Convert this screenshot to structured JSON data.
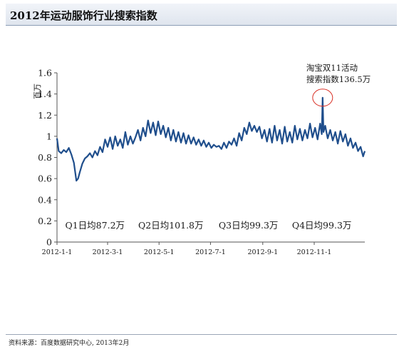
{
  "header": {
    "title": "2012年运动服饰行业搜索指数"
  },
  "footer": {
    "source": "资料来源：百度数据研究中心, 2013年2月"
  },
  "chart_data": {
    "type": "line",
    "title": "2012年运动服饰行业搜索指数",
    "ylabel": "百万",
    "xlabel": "",
    "ylim": [
      0,
      1.6
    ],
    "yticks": [
      {
        "v": 0,
        "label": "0"
      },
      {
        "v": 0.2,
        "label": "0.2"
      },
      {
        "v": 0.4,
        "label": "0.4"
      },
      {
        "v": 0.6,
        "label": "0.6"
      },
      {
        "v": 0.8,
        "label": "0.8"
      },
      {
        "v": 1.0,
        "label": "1"
      },
      {
        "v": 1.2,
        "label": "1.2"
      },
      {
        "v": 1.4,
        "label": "1.4"
      },
      {
        "v": 1.6,
        "label": "1.6"
      }
    ],
    "xticks": [
      {
        "date": "2012-01-01",
        "label": "2012-1-1"
      },
      {
        "date": "2012-03-01",
        "label": "2012-3-1"
      },
      {
        "date": "2012-05-01",
        "label": "2012-5-1"
      },
      {
        "date": "2012-07-01",
        "label": "2012-7-1"
      },
      {
        "date": "2012-09-01",
        "label": "2012-9-1"
      },
      {
        "date": "2012-11-01",
        "label": "2012-11-1"
      }
    ],
    "xrange": [
      "2012-01-01",
      "2012-12-31"
    ],
    "series_color": "#1f4e8c",
    "highlight_color": "#d93025",
    "series": [
      {
        "x": [
          "2012-01-01",
          "2012-01-03",
          "2012-01-06",
          "2012-01-09",
          "2012-01-12",
          "2012-01-15",
          "2012-01-18",
          "2012-01-21",
          "2012-01-24",
          "2012-01-26",
          "2012-01-28",
          "2012-01-31",
          "2012-02-03",
          "2012-02-06",
          "2012-02-09",
          "2012-02-12",
          "2012-02-15",
          "2012-02-18",
          "2012-02-21",
          "2012-02-24",
          "2012-02-27",
          "2012-03-01",
          "2012-03-04",
          "2012-03-07",
          "2012-03-10",
          "2012-03-13",
          "2012-03-16",
          "2012-03-19",
          "2012-03-22",
          "2012-03-25",
          "2012-03-28",
          "2012-03-31",
          "2012-04-03",
          "2012-04-06",
          "2012-04-09",
          "2012-04-12",
          "2012-04-15",
          "2012-04-18",
          "2012-04-21",
          "2012-04-24",
          "2012-04-27",
          "2012-04-30",
          "2012-05-03",
          "2012-05-06",
          "2012-05-09",
          "2012-05-12",
          "2012-05-15",
          "2012-05-18",
          "2012-05-21",
          "2012-05-24",
          "2012-05-27",
          "2012-05-30",
          "2012-06-02",
          "2012-06-05",
          "2012-06-08",
          "2012-06-11",
          "2012-06-14",
          "2012-06-17",
          "2012-06-20",
          "2012-06-23",
          "2012-06-26",
          "2012-06-29",
          "2012-07-02",
          "2012-07-05",
          "2012-07-08",
          "2012-07-11",
          "2012-07-14",
          "2012-07-17",
          "2012-07-20",
          "2012-07-23",
          "2012-07-26",
          "2012-07-29",
          "2012-08-01",
          "2012-08-04",
          "2012-08-07",
          "2012-08-10",
          "2012-08-13",
          "2012-08-16",
          "2012-08-19",
          "2012-08-22",
          "2012-08-25",
          "2012-08-28",
          "2012-08-31",
          "2012-09-03",
          "2012-09-06",
          "2012-09-09",
          "2012-09-12",
          "2012-09-15",
          "2012-09-18",
          "2012-09-21",
          "2012-09-24",
          "2012-09-27",
          "2012-09-30",
          "2012-10-03",
          "2012-10-06",
          "2012-10-09",
          "2012-10-12",
          "2012-10-15",
          "2012-10-18",
          "2012-10-21",
          "2012-10-24",
          "2012-10-27",
          "2012-10-30",
          "2012-11-02",
          "2012-11-05",
          "2012-11-08",
          "2012-11-10",
          "2012-11-11",
          "2012-11-12",
          "2012-11-14",
          "2012-11-17",
          "2012-11-20",
          "2012-11-23",
          "2012-11-26",
          "2012-11-29",
          "2012-12-02",
          "2012-12-05",
          "2012-12-08",
          "2012-12-11",
          "2012-12-14",
          "2012-12-17",
          "2012-12-20",
          "2012-12-23",
          "2012-12-26",
          "2012-12-29",
          "2012-12-31"
        ],
        "y": [
          0.98,
          0.86,
          0.84,
          0.87,
          0.85,
          0.89,
          0.83,
          0.75,
          0.58,
          0.6,
          0.66,
          0.74,
          0.79,
          0.81,
          0.84,
          0.8,
          0.86,
          0.82,
          0.9,
          0.85,
          0.97,
          0.9,
          0.99,
          0.88,
          1.0,
          0.91,
          0.97,
          0.89,
          1.04,
          0.92,
          1.0,
          0.93,
          0.99,
          1.06,
          0.96,
          1.08,
          1.0,
          1.15,
          1.03,
          1.13,
          1.01,
          1.14,
          1.02,
          1.1,
          0.99,
          1.08,
          0.96,
          1.06,
          0.95,
          1.04,
          0.94,
          1.03,
          0.93,
          1.01,
          0.93,
          0.99,
          0.92,
          0.97,
          0.91,
          0.96,
          0.9,
          0.94,
          0.89,
          0.92,
          0.9,
          0.91,
          0.88,
          0.94,
          0.89,
          0.95,
          0.92,
          0.98,
          0.91,
          1.03,
          0.96,
          1.08,
          1.02,
          1.13,
          1.05,
          1.1,
          1.04,
          1.09,
          0.98,
          1.06,
          0.95,
          1.07,
          0.94,
          1.1,
          0.96,
          1.06,
          0.93,
          1.09,
          0.95,
          1.04,
          0.94,
          1.1,
          0.97,
          1.07,
          0.96,
          1.06,
          0.98,
          1.12,
          0.99,
          1.08,
          0.97,
          1.12,
          1.02,
          1.365,
          1.04,
          1.1,
          0.98,
          1.06,
          0.96,
          1.04,
          0.93,
          1.05,
          0.95,
          1.02,
          0.91,
          0.98,
          0.89,
          0.94,
          0.86,
          0.9,
          0.81,
          0.86
        ]
      }
    ],
    "annotation": {
      "date": "2012-11-11",
      "value": 1.365,
      "label_line1": "淘宝双11活动",
      "label_line2": "搜索指数136.5万"
    },
    "quarter_labels": [
      {
        "text": "Q1日均87.2万",
        "center_date": "2012-02-15"
      },
      {
        "text": "Q2日均101.8万",
        "center_date": "2012-05-15"
      },
      {
        "text": "Q3日均99.3万",
        "center_date": "2012-08-15"
      },
      {
        "text": "Q4日均99.3万",
        "center_date": "2012-11-10"
      }
    ]
  }
}
